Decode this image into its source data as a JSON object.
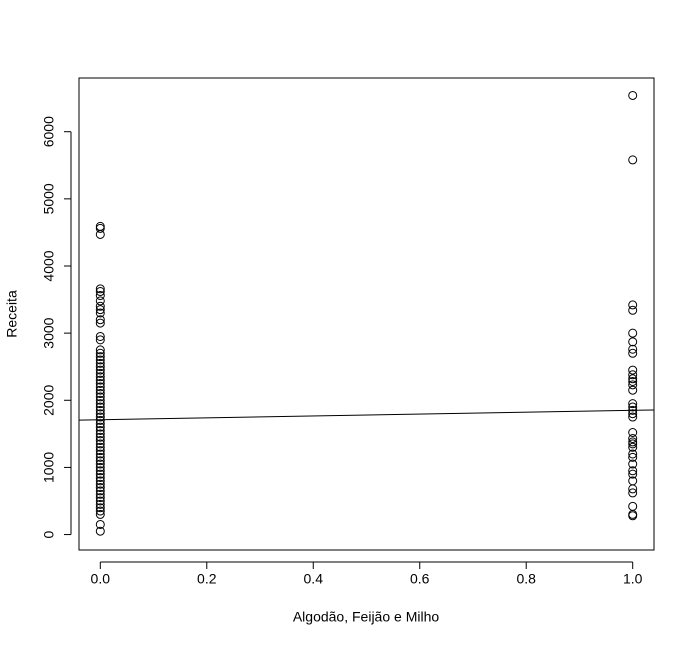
{
  "chart_data": {
    "type": "scatter",
    "x_label": "Algodão, Feijão e Milho",
    "y_label": "Receita",
    "x": [
      0,
      0,
      0,
      0,
      0,
      0,
      0,
      0,
      0,
      0,
      0,
      0,
      0,
      0,
      0,
      0,
      0,
      0,
      0,
      0,
      0,
      0,
      0,
      0,
      0,
      0,
      0,
      0,
      0,
      0,
      0,
      0,
      0,
      0,
      0,
      0,
      0,
      0,
      0,
      0,
      0,
      0,
      0,
      0,
      0,
      0,
      0,
      0,
      0,
      0,
      0,
      0,
      0,
      0,
      0,
      0,
      0,
      0,
      0,
      0,
      0,
      0,
      0,
      0,
      0,
      0,
      1,
      1,
      1,
      1,
      1,
      1,
      1,
      1,
      1,
      1,
      1,
      1,
      1,
      1,
      1,
      1,
      1,
      1,
      1,
      1,
      1,
      1,
      1,
      1,
      1,
      1,
      1,
      1,
      1,
      1,
      1,
      1,
      1,
      1,
      1
    ],
    "values": [
      4590,
      4560,
      4470,
      3660,
      3620,
      3560,
      3480,
      3400,
      3350,
      3300,
      3200,
      3150,
      2950,
      2900,
      2750,
      2700,
      2650,
      2600,
      2550,
      2500,
      2450,
      2400,
      2350,
      2300,
      2250,
      2200,
      2150,
      2100,
      2050,
      2000,
      1950,
      1900,
      1850,
      1800,
      1750,
      1700,
      1650,
      1600,
      1550,
      1500,
      1450,
      1400,
      1350,
      1300,
      1250,
      1200,
      1150,
      1100,
      1050,
      1000,
      950,
      900,
      850,
      800,
      750,
      700,
      650,
      600,
      550,
      500,
      450,
      400,
      350,
      300,
      150,
      50,
      6540,
      5580,
      3420,
      3340,
      3000,
      2870,
      2760,
      2700,
      2450,
      2380,
      2320,
      2280,
      2230,
      2150,
      1950,
      1900,
      1850,
      1800,
      1750,
      1520,
      1430,
      1380,
      1350,
      1300,
      1200,
      1150,
      1050,
      950,
      900,
      800,
      680,
      620,
      420,
      300,
      280
    ],
    "color": "#000000",
    "fit": {
      "intercept": 1710,
      "slope": 140
    },
    "xlim": [
      -0.04,
      1.04
    ],
    "ylim": [
      -230,
      6800
    ],
    "xticks": [
      {
        "value": 0,
        "label": "0.0"
      },
      0.2,
      0.4,
      0.6,
      0.8,
      {
        "value": 1,
        "label": "1.0"
      }
    ],
    "yticks": [
      0,
      1000,
      2000,
      3000,
      4000,
      5000,
      6000
    ]
  }
}
